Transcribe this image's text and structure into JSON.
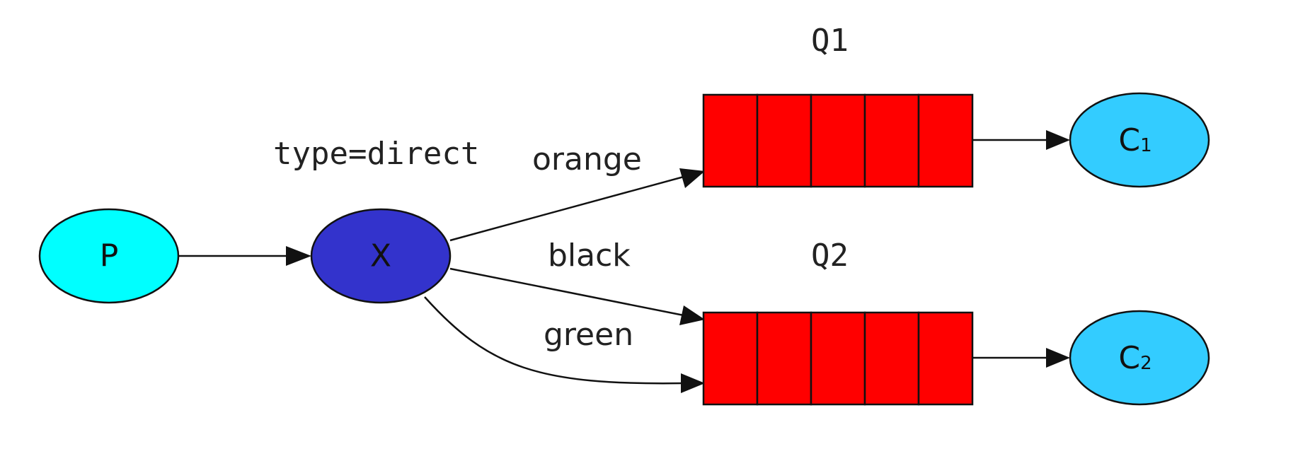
{
  "nodes": {
    "producer": {
      "label": "P",
      "color": "#00ffff"
    },
    "exchange": {
      "label": "X",
      "color": "#3333cc",
      "type_label": "type=direct"
    },
    "consumer1": {
      "label": "C",
      "subscript": "1",
      "color": "#33ccff"
    },
    "consumer2": {
      "label": "C",
      "subscript": "2",
      "color": "#33ccff"
    }
  },
  "queues": [
    {
      "name": "Q1",
      "slots": 5,
      "color": "#ff0000"
    },
    {
      "name": "Q2",
      "slots": 5,
      "color": "#ff0000"
    }
  ],
  "bindings": [
    {
      "key": "orange",
      "to": "Q1"
    },
    {
      "key": "black",
      "to": "Q2"
    },
    {
      "key": "green",
      "to": "Q2"
    }
  ]
}
